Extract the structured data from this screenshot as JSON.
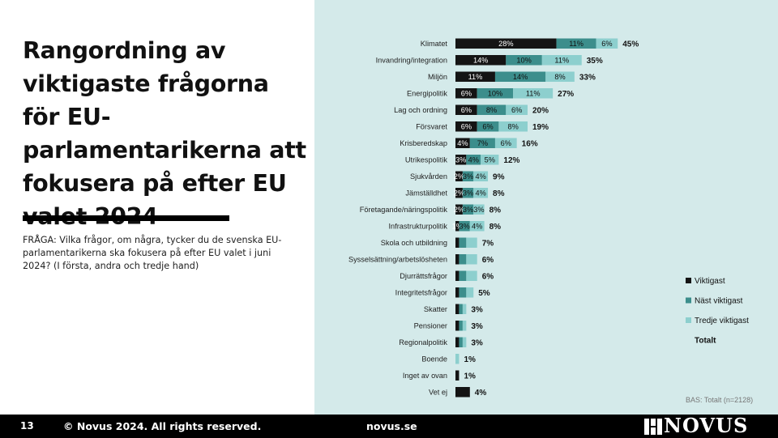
{
  "slide": {
    "title": "Rangordning av viktigaste frågorna för EU-parlamentarikerna att fokusera på efter EU valet 2024",
    "question": "FRÅGA: Vilka frågor, om några, tycker du de svenska EU-parlamentarikerna ska fokusera på efter EU valet i juni 2024? (I första, andra och tredje hand)",
    "base_note": "BAS: Totalt (n=2128)"
  },
  "footer": {
    "page_number": "13",
    "copyright": "© Novus 2024. All rights reserved.",
    "website": "novus.se",
    "logo_text": "NOVUS"
  },
  "colors": {
    "viktigast": "#141414",
    "nast": "#3c8e8c",
    "tredje": "#8dcfce",
    "panel": "#d4eaea"
  },
  "chart_data": {
    "type": "bar",
    "orientation": "horizontal",
    "stacked": true,
    "categories": [
      "Klimatet",
      "Invandring/integration",
      "Miljön",
      "Energipolitik",
      "Lag och ordning",
      "Försvaret",
      "Krisberedskap",
      "Utrikespolitik",
      "Sjukvården",
      "Jämställdhet",
      "Företagande/näringspolitik",
      "Infrastrukturpolitik",
      "Skola och utbildning",
      "Sysselsättning/arbetslösheten",
      "Djurrättsfrågor",
      "Integritetsfrågor",
      "Skatter",
      "Pensioner",
      "Regionalpolitik",
      "Boende",
      "Inget av ovan",
      "Vet ej"
    ],
    "series": [
      {
        "name": "Viktigast",
        "values": [
          28,
          14,
          11,
          6,
          6,
          6,
          4,
          3,
          2,
          2,
          2,
          1,
          1,
          1,
          1,
          1,
          1,
          1,
          1,
          0,
          1,
          4
        ],
        "labels": [
          "28%",
          "14%",
          "11%",
          "6%",
          "6%",
          "6%",
          "4%",
          "3%",
          "2%",
          "2%",
          "2%",
          "1%",
          "",
          "",
          "",
          "",
          "",
          "",
          "",
          "",
          "",
          ""
        ]
      },
      {
        "name": "Näst viktigast",
        "values": [
          11,
          10,
          14,
          10,
          8,
          6,
          7,
          4,
          3,
          3,
          3,
          3,
          2,
          2,
          2,
          2,
          1,
          1,
          1,
          0,
          0,
          0
        ],
        "labels": [
          "11%",
          "10%",
          "14%",
          "10%",
          "8%",
          "6%",
          "7%",
          "4%",
          "3%",
          "3%",
          "3%",
          "3%",
          "",
          "",
          "",
          "",
          "",
          "",
          "",
          "",
          "",
          ""
        ]
      },
      {
        "name": "Tredje viktigast",
        "values": [
          6,
          11,
          8,
          11,
          6,
          8,
          6,
          5,
          4,
          4,
          3,
          4,
          3,
          3,
          3,
          2,
          1,
          1,
          1,
          1,
          0,
          0
        ],
        "labels": [
          "6%",
          "11%",
          "8%",
          "11%",
          "6%",
          "8%",
          "6%",
          "5%",
          "4%",
          "4%",
          "3%",
          "4%",
          "",
          "",
          "",
          "",
          "",
          "",
          "",
          "",
          "",
          ""
        ]
      }
    ],
    "totals": [
      "45%",
      "35%",
      "33%",
      "27%",
      "20%",
      "19%",
      "16%",
      "12%",
      "9%",
      "8%",
      "8%",
      "8%",
      "7%",
      "6%",
      "6%",
      "5%",
      "3%",
      "3%",
      "3%",
      "1%",
      "1%",
      "4%"
    ],
    "legend": [
      "Viktigast",
      "Näst viktigast",
      "Tredje viktigast",
      "Totalt"
    ],
    "legend_position": "right",
    "grid": false
  }
}
